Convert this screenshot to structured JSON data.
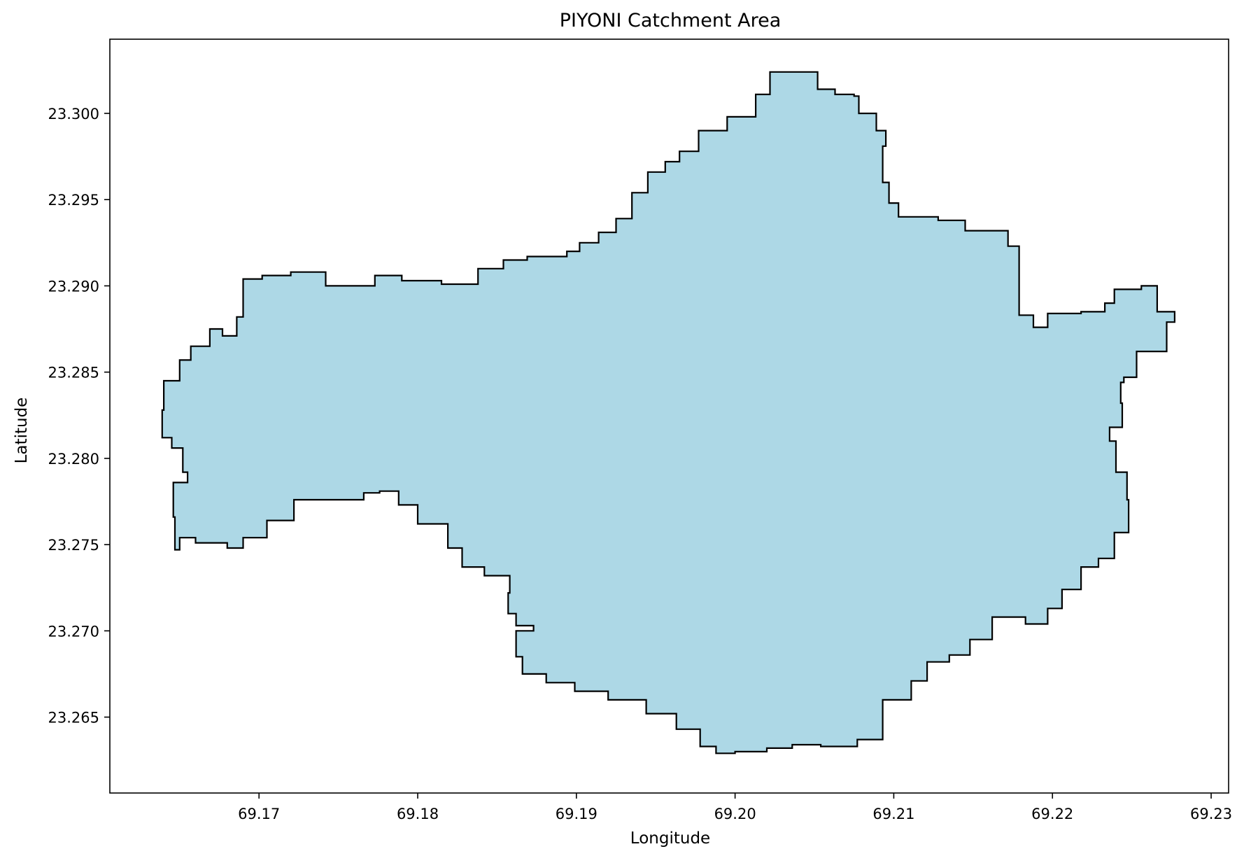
{
  "chart_data": {
    "type": "map",
    "title": "PIYONI Catchment Area",
    "xlabel": "Longitude",
    "ylabel": "Latitude",
    "xlim": [
      69.1606,
      69.2311
    ],
    "ylim": [
      23.2606,
      23.3043
    ],
    "xticks": [
      {
        "value": 69.17,
        "label": "69.17"
      },
      {
        "value": 69.18,
        "label": "69.18"
      },
      {
        "value": 69.19,
        "label": "69.19"
      },
      {
        "value": 69.2,
        "label": "69.20"
      },
      {
        "value": 69.21,
        "label": "69.21"
      },
      {
        "value": 69.22,
        "label": "69.22"
      },
      {
        "value": 69.23,
        "label": "69.23"
      }
    ],
    "yticks": [
      {
        "value": 23.265,
        "label": "23.265"
      },
      {
        "value": 23.27,
        "label": "23.270"
      },
      {
        "value": 23.275,
        "label": "23.275"
      },
      {
        "value": 23.28,
        "label": "23.280"
      },
      {
        "value": 23.285,
        "label": "23.285"
      },
      {
        "value": 23.29,
        "label": "23.290"
      },
      {
        "value": 23.295,
        "label": "23.295"
      },
      {
        "value": 23.3,
        "label": "23.300"
      }
    ],
    "grid": false,
    "fill_color": "#add8e6",
    "edge_color": "#000000",
    "boundary": [
      [
        69.2022,
        23.3024
      ],
      [
        69.2052,
        23.3014
      ],
      [
        69.2063,
        23.3011
      ],
      [
        69.2075,
        23.301
      ],
      [
        69.2078,
        23.3
      ],
      [
        69.2089,
        23.299
      ],
      [
        69.2095,
        23.2981
      ],
      [
        69.2093,
        23.296
      ],
      [
        69.2097,
        23.2948
      ],
      [
        69.2103,
        23.294
      ],
      [
        69.2128,
        23.2938
      ],
      [
        69.2145,
        23.2932
      ],
      [
        69.2165,
        23.2932
      ],
      [
        69.2172,
        23.2923
      ],
      [
        69.2179,
        23.2918
      ],
      [
        69.2179,
        23.2883
      ],
      [
        69.2188,
        23.2876
      ],
      [
        69.2197,
        23.2884
      ],
      [
        69.2218,
        23.2885
      ],
      [
        69.2233,
        23.289
      ],
      [
        69.2239,
        23.2898
      ],
      [
        69.2256,
        23.29
      ],
      [
        69.2266,
        23.2885
      ],
      [
        69.2277,
        23.2879
      ],
      [
        69.2272,
        23.2862
      ],
      [
        69.2253,
        23.2847
      ],
      [
        69.2245,
        23.2844
      ],
      [
        69.2243,
        23.2832
      ],
      [
        69.2244,
        23.2818
      ],
      [
        69.2236,
        23.281
      ],
      [
        69.224,
        23.2792
      ],
      [
        69.2247,
        23.2776
      ],
      [
        69.2248,
        23.2757
      ],
      [
        69.2239,
        23.2742
      ],
      [
        69.2229,
        23.2737
      ],
      [
        69.2218,
        23.2724
      ],
      [
        69.2206,
        23.2713
      ],
      [
        69.2197,
        23.2704
      ],
      [
        69.2183,
        23.2708
      ],
      [
        69.2162,
        23.2695
      ],
      [
        69.2148,
        23.2686
      ],
      [
        69.2135,
        23.2682
      ],
      [
        69.2121,
        23.2671
      ],
      [
        69.2111,
        23.266
      ],
      [
        69.2093,
        23.2637
      ],
      [
        69.2077,
        23.2633
      ],
      [
        69.2054,
        23.2634
      ],
      [
        69.2036,
        23.2632
      ],
      [
        69.202,
        23.263
      ],
      [
        69.2,
        23.2629
      ],
      [
        69.1988,
        23.2633
      ],
      [
        69.1978,
        23.2643
      ],
      [
        69.1963,
        23.2652
      ],
      [
        69.1944,
        23.266
      ],
      [
        69.192,
        23.2665
      ],
      [
        69.1899,
        23.267
      ],
      [
        69.1881,
        23.2675
      ],
      [
        69.1866,
        23.2685
      ],
      [
        69.1862,
        23.27
      ],
      [
        69.1873,
        23.2703
      ],
      [
        69.1862,
        23.271
      ],
      [
        69.1857,
        23.2722
      ],
      [
        69.1858,
        23.2732
      ],
      [
        69.1842,
        23.2737
      ],
      [
        69.1828,
        23.2748
      ],
      [
        69.1819,
        23.2762
      ],
      [
        69.18,
        23.2773
      ],
      [
        69.1788,
        23.2781
      ],
      [
        69.1776,
        23.278
      ],
      [
        69.1766,
        23.2776
      ],
      [
        69.1739,
        23.2776
      ],
      [
        69.1722,
        23.2764
      ],
      [
        69.1705,
        23.2754
      ],
      [
        69.169,
        23.2748
      ],
      [
        69.168,
        23.2751
      ],
      [
        69.166,
        23.2754
      ],
      [
        69.165,
        23.2747
      ],
      [
        69.1647,
        23.2766
      ],
      [
        69.1646,
        23.2786
      ],
      [
        69.1655,
        23.2792
      ],
      [
        69.1652,
        23.2806
      ],
      [
        69.1645,
        23.2812
      ],
      [
        69.1639,
        23.2828
      ],
      [
        69.164,
        23.2845
      ],
      [
        69.165,
        23.2857
      ],
      [
        69.1657,
        23.2865
      ],
      [
        69.1669,
        23.2875
      ],
      [
        69.1677,
        23.2871
      ],
      [
        69.1686,
        23.2882
      ],
      [
        69.169,
        23.2904
      ],
      [
        69.1702,
        23.2906
      ],
      [
        69.172,
        23.2908
      ],
      [
        69.1731,
        23.2908
      ],
      [
        69.1742,
        23.29
      ],
      [
        69.1766,
        23.29
      ],
      [
        69.1773,
        23.2906
      ],
      [
        69.179,
        23.2903
      ],
      [
        69.1815,
        23.2901
      ],
      [
        69.1838,
        23.291
      ],
      [
        69.1854,
        23.2915
      ],
      [
        69.1869,
        23.2917
      ],
      [
        69.1894,
        23.292
      ],
      [
        69.1902,
        23.2925
      ],
      [
        69.1914,
        23.2931
      ],
      [
        69.1925,
        23.2939
      ],
      [
        69.1935,
        23.2954
      ],
      [
        69.1945,
        23.2966
      ],
      [
        69.1956,
        23.2972
      ],
      [
        69.1965,
        23.2978
      ],
      [
        69.1977,
        23.299
      ],
      [
        69.1995,
        23.2998
      ],
      [
        69.2013,
        23.3011
      ]
    ]
  }
}
